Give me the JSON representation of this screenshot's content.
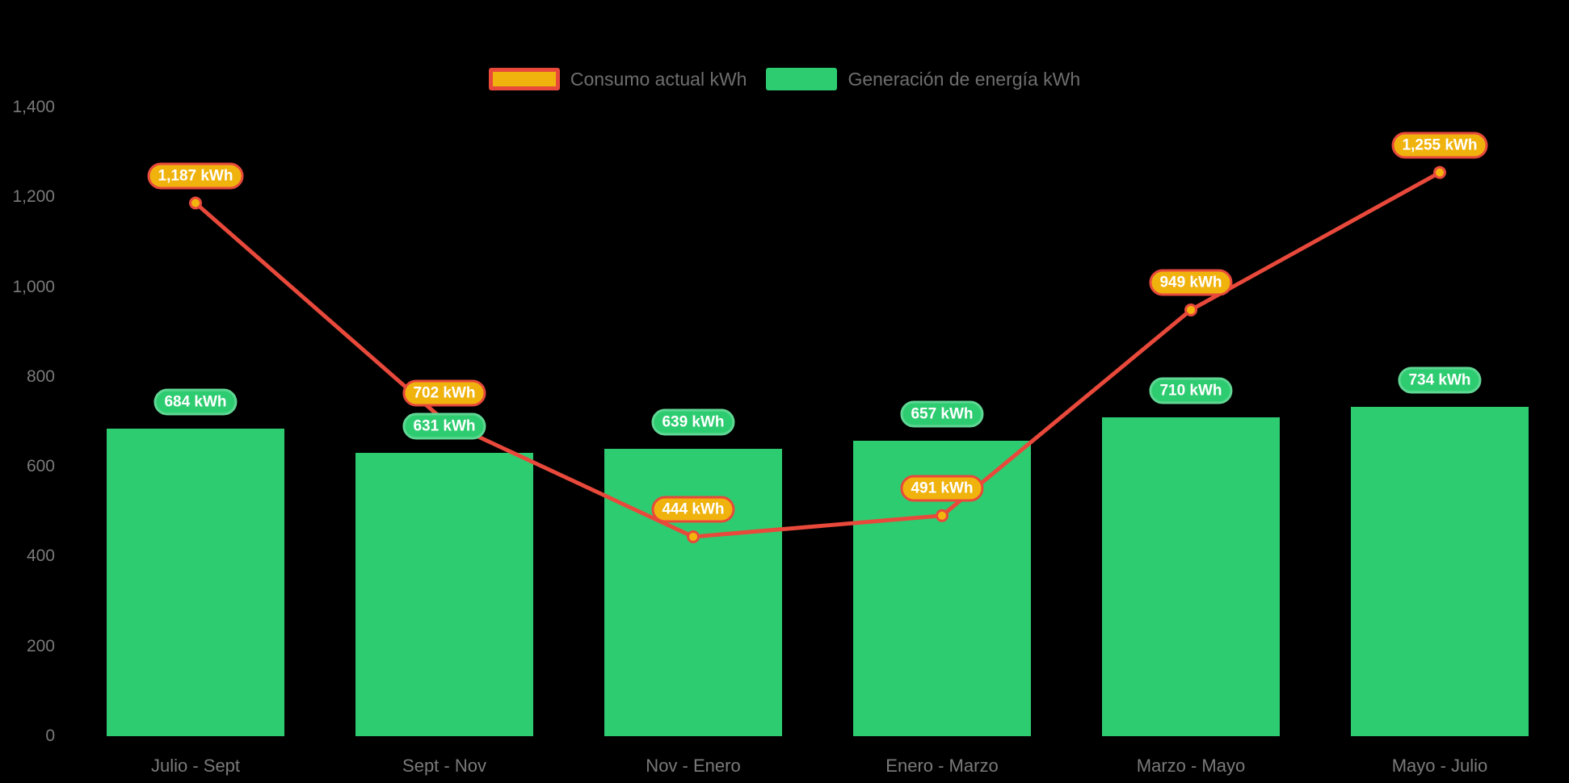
{
  "page": {
    "background": "#000000"
  },
  "colors": {
    "bar_green": "#2ecc71",
    "bar_label_border": "#5fd793",
    "line_red": "#e8493b",
    "point_fill": "#f3b50d",
    "consumo_pill_fill": "#f0b30e",
    "axis_text": "#7a7a7a",
    "legend_text": "#6e6e6e"
  },
  "chart_data": {
    "type": "combo",
    "categories": [
      "Julio - Sept",
      "Sept - Nov",
      "Nov - Enero",
      "Enero - Marzo",
      "Marzo - Mayo",
      "Mayo - Julio"
    ],
    "series": [
      {
        "name": "Consumo actual kWh",
        "type": "line",
        "color": "#e8493b",
        "point_fill": "#f3b50d",
        "label_fill": "#f0b30e",
        "label_border": "#e8493b",
        "values": [
          1187,
          702,
          444,
          491,
          949,
          1255
        ],
        "labels": [
          "1,187 kWh",
          "702 kWh",
          "444 kWh",
          "491 kWh",
          "949 kWh",
          "1,255 kWh"
        ]
      },
      {
        "name": "Generación de energía kWh",
        "type": "bar",
        "color": "#2ecc71",
        "label_fill": "#2ecc71",
        "label_border": "#5fd793",
        "values": [
          684,
          631,
          639,
          657,
          710,
          734
        ],
        "labels": [
          "684 kWh",
          "631 kWh",
          "639 kWh",
          "657 kWh",
          "710 kWh",
          "734 kWh"
        ]
      }
    ],
    "yticks": [
      {
        "label": "0",
        "value": 0
      },
      {
        "label": "200",
        "value": 200
      },
      {
        "label": "400",
        "value": 400
      },
      {
        "label": "600",
        "value": 600
      },
      {
        "label": "800",
        "value": 800
      },
      {
        "label": "1,000",
        "value": 1000
      },
      {
        "label": "1,200",
        "value": 1200
      },
      {
        "label": "1,400",
        "value": 1400
      }
    ],
    "ylim": [
      0,
      1400
    ],
    "grid": false,
    "legend_position": "top-center",
    "background": "#000000"
  }
}
